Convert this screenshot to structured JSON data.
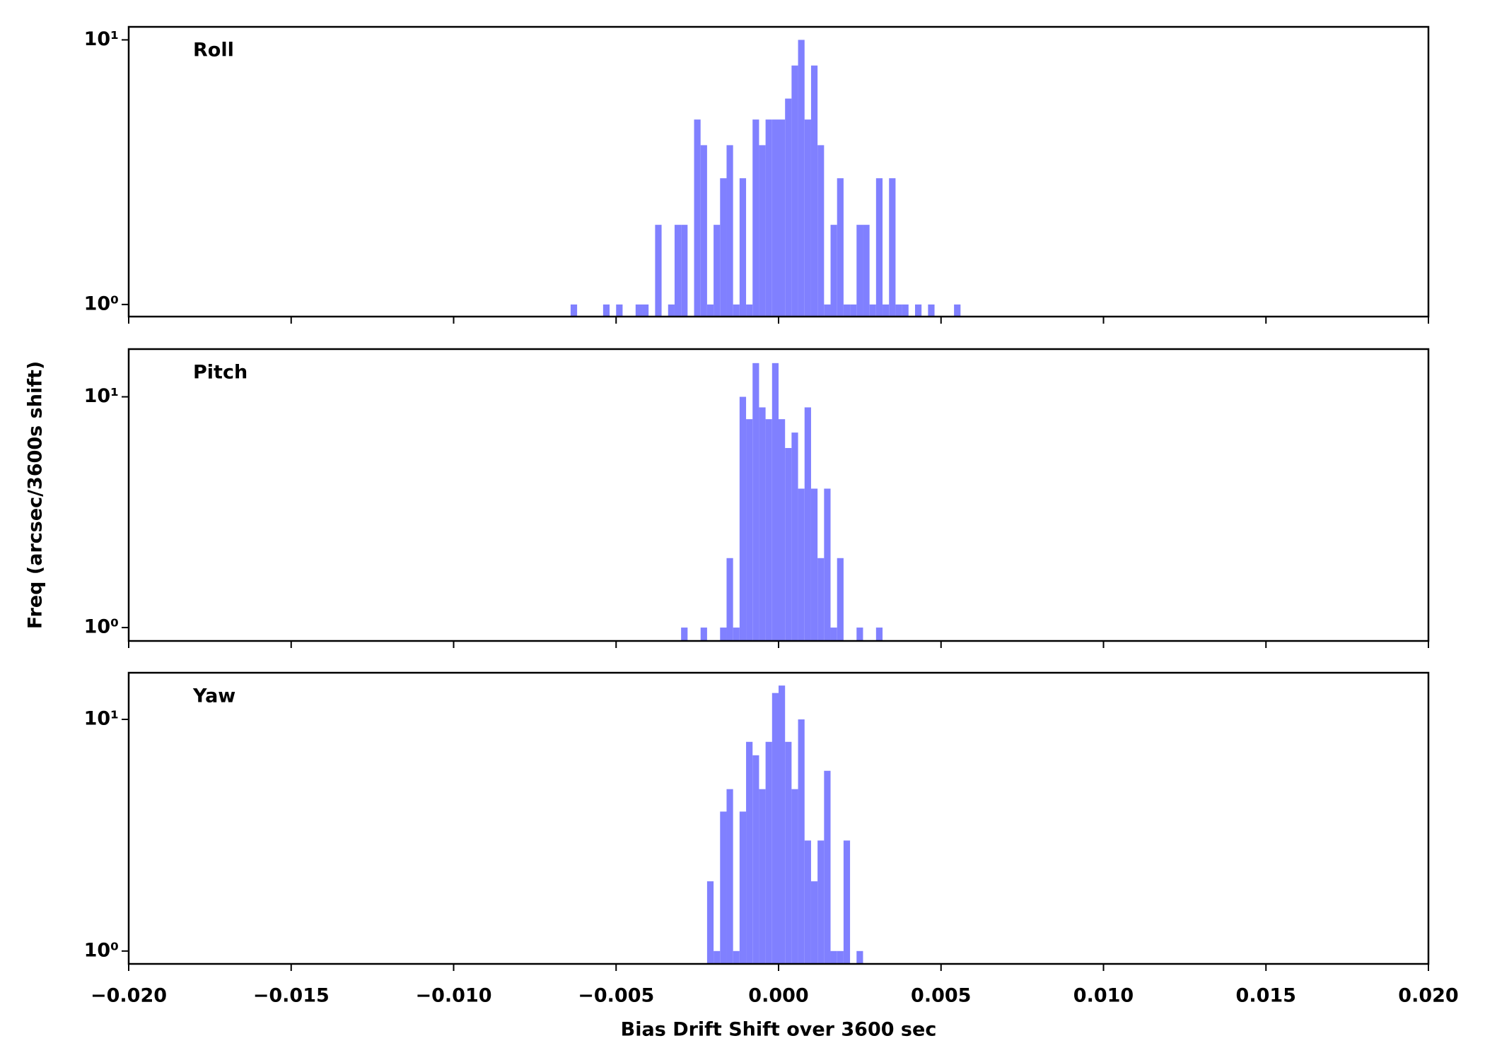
{
  "chart_data": [
    {
      "type": "histogram",
      "label": "Roll",
      "color": "#8080ff",
      "log": true,
      "xlim": [
        -0.02,
        0.02
      ],
      "xticks": [
        -0.02,
        -0.015,
        -0.01,
        -0.005,
        0,
        0.005,
        0.01,
        0.015,
        0.02
      ],
      "ylim": [
        0.9,
        11.2
      ],
      "yticks": [
        {
          "value": 1,
          "label": "10⁰"
        },
        {
          "value": 10,
          "label": "10¹"
        }
      ],
      "bins": [
        -0.0064,
        -0.0062,
        -0.006,
        -0.0058,
        -0.0056,
        -0.0054,
        -0.0052,
        -0.005,
        -0.0048,
        -0.0046,
        -0.0044,
        -0.0042,
        -0.004,
        -0.0038,
        -0.0036,
        -0.0034,
        -0.0032,
        -0.003,
        -0.0028,
        -0.0026,
        -0.0024,
        -0.0022,
        -0.002,
        -0.0018,
        -0.0016,
        -0.0014,
        -0.0012,
        -0.001,
        -0.0008,
        -0.0006,
        -0.0004,
        -0.0002,
        0,
        0.0002,
        0.0004,
        0.0006,
        0.0008,
        0.001,
        0.0012,
        0.0014,
        0.0016,
        0.0018,
        0.002,
        0.0022,
        0.0024,
        0.0026,
        0.0028,
        0.003,
        0.0032,
        0.0034,
        0.0036,
        0.0038,
        0.004,
        0.0042,
        0.0044,
        0.0046,
        0.0048,
        0.005,
        0.0052,
        0.0054,
        0.0056
      ],
      "values": [
        1,
        0,
        0,
        0,
        0,
        1,
        0,
        1,
        0,
        0,
        1,
        1,
        0,
        2,
        0,
        1,
        2,
        2,
        0,
        5,
        4,
        1,
        2,
        3,
        4,
        1,
        3,
        1,
        5,
        4,
        5,
        5,
        5,
        6,
        8,
        10,
        5,
        8,
        4,
        1,
        2,
        3,
        1,
        1,
        2,
        2,
        1,
        3,
        1,
        3,
        1,
        1,
        0,
        1,
        0,
        1,
        0,
        0,
        0,
        1
      ]
    },
    {
      "type": "histogram",
      "label": "Pitch",
      "color": "#8080ff",
      "log": true,
      "ylabel": "Freq (arcsec/3600s shift)",
      "xlim": [
        -0.02,
        0.02
      ],
      "xticks": [
        -0.02,
        -0.015,
        -0.01,
        -0.005,
        0,
        0.005,
        0.01,
        0.015,
        0.02
      ],
      "ylim": [
        0.875,
        16.1
      ],
      "yticks": [
        {
          "value": 1,
          "label": "10⁰"
        },
        {
          "value": 10,
          "label": "10¹"
        }
      ],
      "bins": [
        -0.003,
        -0.0028,
        -0.0026,
        -0.0024,
        -0.0022,
        -0.002,
        -0.0018,
        -0.0016,
        -0.0014,
        -0.0012,
        -0.001,
        -0.0008,
        -0.0006,
        -0.0004,
        -0.0002,
        0,
        0.0002,
        0.0004,
        0.0006,
        0.0008,
        0.001,
        0.0012,
        0.0014,
        0.0016,
        0.0018,
        0.002,
        0.0022,
        0.0024,
        0.0026,
        0.0028,
        0.003,
        0.0032
      ],
      "values": [
        1,
        0,
        0,
        1,
        0,
        0,
        1,
        2,
        1,
        10,
        8,
        14,
        9,
        8,
        14,
        8,
        6,
        7,
        4,
        9,
        4,
        2,
        4,
        1,
        2,
        0,
        0,
        1,
        0,
        0,
        1
      ]
    },
    {
      "type": "histogram",
      "label": "Yaw",
      "color": "#8080ff",
      "log": true,
      "xlabel": "Bias Drift Shift over 3600 sec",
      "xlim": [
        -0.02,
        0.02
      ],
      "xticks": [
        {
          "value": -0.02,
          "label": "−0.020"
        },
        {
          "value": -0.015,
          "label": "−0.015"
        },
        {
          "value": -0.01,
          "label": "−0.010"
        },
        {
          "value": -0.005,
          "label": "−0.005"
        },
        {
          "value": 0,
          "label": "0.000"
        },
        {
          "value": 0.005,
          "label": "0.005"
        },
        {
          "value": 0.01,
          "label": "0.010"
        },
        {
          "value": 0.015,
          "label": "0.015"
        },
        {
          "value": 0.02,
          "label": "0.020"
        }
      ],
      "ylim": [
        0.88,
        15.9
      ],
      "yticks": [
        {
          "value": 1,
          "label": "10⁰"
        },
        {
          "value": 10,
          "label": "10¹"
        }
      ],
      "bins": [
        -0.0022,
        -0.002,
        -0.0018,
        -0.0016,
        -0.0014,
        -0.0012,
        -0.001,
        -0.0008,
        -0.0006,
        -0.0004,
        -0.0002,
        0,
        0.0002,
        0.0004,
        0.0006,
        0.0008,
        0.001,
        0.0012,
        0.0014,
        0.0016,
        0.0018,
        0.002,
        0.0022,
        0.0024,
        0.0026,
        0.0028
      ],
      "values": [
        2,
        1,
        4,
        5,
        1,
        4,
        8,
        7,
        5,
        8,
        13,
        14,
        8,
        5,
        10,
        3,
        2,
        3,
        6,
        1,
        1,
        3,
        0,
        1,
        0
      ]
    }
  ]
}
